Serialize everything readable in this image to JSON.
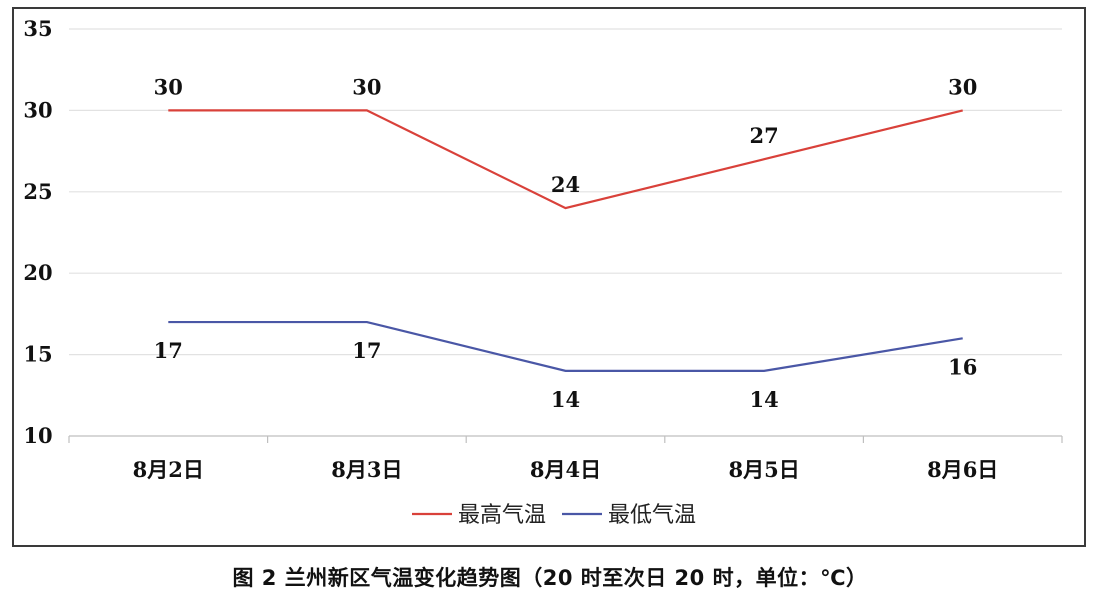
{
  "chart_data": {
    "type": "line",
    "title": "",
    "xlabel": "",
    "ylabel": "",
    "categories": [
      "8月2日",
      "8月3日",
      "8月4日",
      "8月5日",
      "8月6日"
    ],
    "series": [
      {
        "name": "最高气温",
        "values": [
          30,
          30,
          24,
          27,
          30
        ],
        "color": "#d9413a"
      },
      {
        "name": "最低气温",
        "values": [
          17,
          17,
          14,
          14,
          16
        ],
        "color": "#4a57a6"
      }
    ],
    "ylim": [
      10,
      35
    ],
    "yticks": [
      10,
      15,
      20,
      25,
      30,
      35
    ],
    "grid": true,
    "legend": "bottom"
  },
  "caption": "图 2  兰州新区气温变化趋势图（20 时至次日 20 时，单位：℃）"
}
